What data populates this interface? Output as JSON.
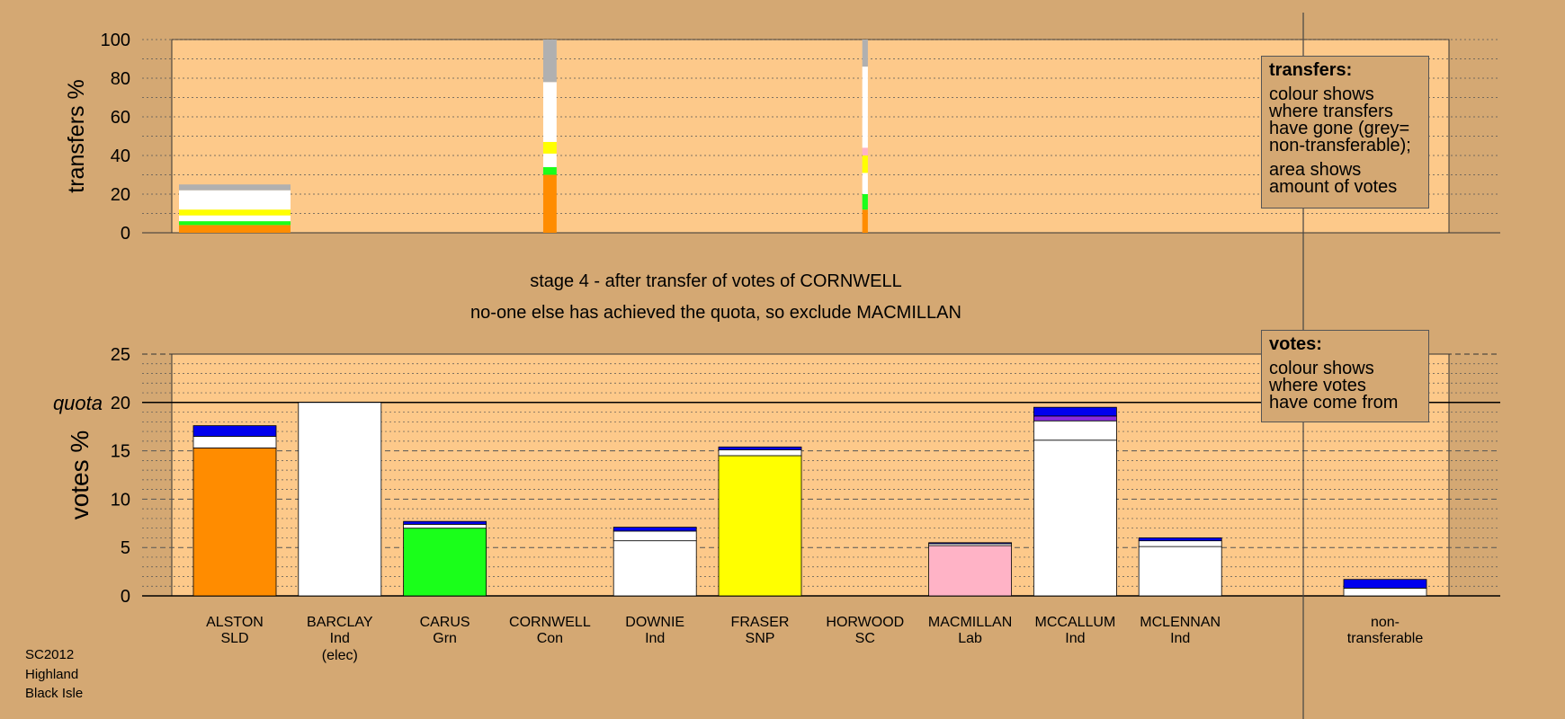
{
  "stage_text": "stage 4 - after transfer of votes of CORNWELL",
  "exclude_text": "no-one else has achieved the quota, so exclude MACMILLAN",
  "footer": [
    "SC2012",
    "Highland",
    "Black Isle"
  ],
  "legend_transfers": {
    "title": "transfers:",
    "lines1": [
      "colour shows",
      "where transfers",
      "have gone (grey=",
      "non-transferable);"
    ],
    "lines2": [
      "area shows",
      "amount of votes"
    ]
  },
  "legend_votes": {
    "title": "votes:",
    "lines1": [
      "colour shows",
      "where votes",
      "have come from"
    ]
  },
  "colors": {
    "background": "#d4a873",
    "plot_bg": "#fdc98a",
    "orange": "#ff8c00",
    "white": "#ffffff",
    "green": "#1aff1a",
    "yellow": "#ffff00",
    "pink": "#ffb3c6",
    "blue": "#0000ee",
    "purple": "#8a2be2",
    "grey": "#b0b0b0"
  },
  "chart_data": [
    {
      "type": "bar",
      "ylabel": "transfers %",
      "ylim": [
        0,
        100
      ],
      "yticks": [
        0,
        20,
        40,
        60,
        80,
        100
      ],
      "note": "stacked transfer bars; bar width proportional to amount of votes transferred",
      "bars": [
        {
          "from": "ALSTON",
          "width_share": 1.0,
          "segments": [
            {
              "color": "orange",
              "value": 4
            },
            {
              "color": "green",
              "value": 2
            },
            {
              "color": "white",
              "value": 3
            },
            {
              "color": "yellow",
              "value": 3
            },
            {
              "color": "white",
              "value": 10
            },
            {
              "color": "grey",
              "value": 3
            }
          ]
        },
        {
          "from": "CORNWELL",
          "width_share": 0.12,
          "segments": [
            {
              "color": "orange",
              "value": 30
            },
            {
              "color": "green",
              "value": 4
            },
            {
              "color": "white",
              "value": 7
            },
            {
              "color": "yellow",
              "value": 6
            },
            {
              "color": "white",
              "value": 31
            },
            {
              "color": "grey",
              "value": 22
            }
          ]
        },
        {
          "from": "HORWOOD",
          "width_share": 0.05,
          "segments": [
            {
              "color": "orange",
              "value": 12
            },
            {
              "color": "green",
              "value": 8
            },
            {
              "color": "white",
              "value": 11
            },
            {
              "color": "yellow",
              "value": 9
            },
            {
              "color": "pink",
              "value": 4
            },
            {
              "color": "white",
              "value": 42
            },
            {
              "color": "grey",
              "value": 14
            }
          ]
        }
      ]
    },
    {
      "type": "bar",
      "ylabel": "votes %",
      "ylim": [
        0,
        25
      ],
      "yticks": [
        0,
        5,
        10,
        15,
        20,
        25
      ],
      "quota": 20,
      "quota_label": "quota",
      "categories": [
        {
          "name": "ALSTON",
          "party": "SLD",
          "extra": ""
        },
        {
          "name": "BARCLAY",
          "party": "Ind",
          "extra": "(elec)"
        },
        {
          "name": "CARUS",
          "party": "Grn",
          "extra": ""
        },
        {
          "name": "CORNWELL",
          "party": "Con",
          "extra": ""
        },
        {
          "name": "DOWNIE",
          "party": "Ind",
          "extra": ""
        },
        {
          "name": "FRASER",
          "party": "SNP",
          "extra": ""
        },
        {
          "name": "HORWOOD",
          "party": "SC",
          "extra": ""
        },
        {
          "name": "MACMILLAN",
          "party": "Lab",
          "extra": ""
        },
        {
          "name": "MCCALLUM",
          "party": "Ind",
          "extra": ""
        },
        {
          "name": "MCLENNAN",
          "party": "Ind",
          "extra": ""
        },
        {
          "name": "non-",
          "party": "transferable",
          "extra": ""
        }
      ],
      "stacks": [
        [
          {
            "color": "orange",
            "value": 15.3
          },
          {
            "color": "white",
            "value": 1.2
          },
          {
            "color": "blue",
            "value": 1.1
          }
        ],
        [
          {
            "color": "white",
            "value": 20.0
          }
        ],
        [
          {
            "color": "green",
            "value": 7.0
          },
          {
            "color": "white",
            "value": 0.4
          },
          {
            "color": "blue",
            "value": 0.3
          }
        ],
        [],
        [
          {
            "color": "white",
            "value": 5.7
          },
          {
            "color": "white",
            "value": 1.0
          },
          {
            "color": "blue",
            "value": 0.4
          }
        ],
        [
          {
            "color": "yellow",
            "value": 14.5
          },
          {
            "color": "white",
            "value": 0.6
          },
          {
            "color": "blue",
            "value": 0.3
          }
        ],
        [],
        [
          {
            "color": "pink",
            "value": 5.2
          },
          {
            "color": "white",
            "value": 0.2
          },
          {
            "color": "blue",
            "value": 0.1
          }
        ],
        [
          {
            "color": "white",
            "value": 16.1
          },
          {
            "color": "white",
            "value": 2.0
          },
          {
            "color": "purple",
            "value": 0.5
          },
          {
            "color": "blue",
            "value": 0.9
          }
        ],
        [
          {
            "color": "white",
            "value": 5.1
          },
          {
            "color": "white",
            "value": 0.6
          },
          {
            "color": "blue",
            "value": 0.3
          }
        ],
        [
          {
            "color": "white",
            "value": 0.8
          },
          {
            "color": "blue",
            "value": 0.9
          }
        ]
      ]
    }
  ]
}
